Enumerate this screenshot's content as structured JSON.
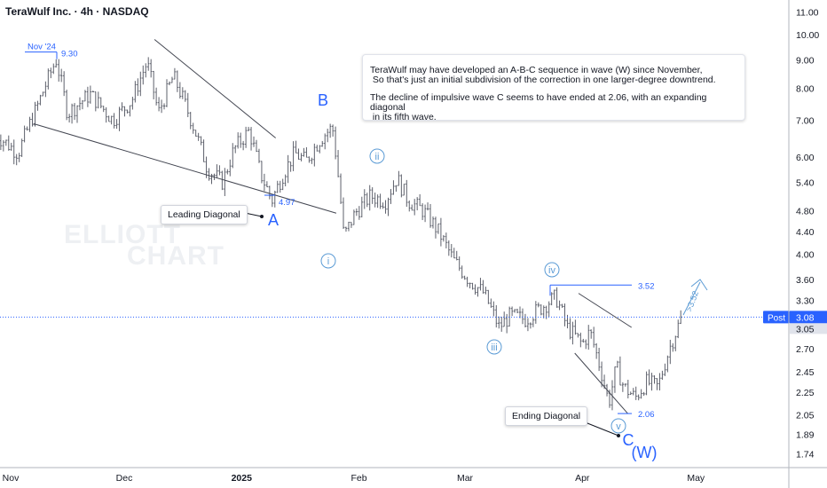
{
  "header": {
    "symbol_title": "TeraWulf Inc. · 4h · NASDAQ"
  },
  "watermark": {
    "line1": "ELLIOTT",
    "line2": "CHART"
  },
  "note": {
    "line1": "TeraWulf may have developed an A-B-C sequence in wave (W) since November,\n So that's just an initial subdivision of the correction in one larger-degree downtrend.",
    "line2": "The decline of impulsive wave C seems to have ended at 2.06, with an expanding diagonal\n in its fifth wave."
  },
  "callouts": {
    "leading": "Leading Diagonal",
    "ending": "Ending Diagonal"
  },
  "colors": {
    "wave": "#2962ff",
    "minor_wave": "#5b9bd5",
    "line": "#2962ff",
    "candle": "#5d606b",
    "grid_text": "#131722",
    "post_badge": "#2962ff"
  },
  "chart_data": {
    "type": "candlestick",
    "title": "TeraWulf Inc. · 4h · NASDAQ",
    "y_scale": "log",
    "y_ticks": [
      "11.00",
      "10.00",
      "9.00",
      "8.00",
      "7.00",
      "6.00",
      "5.40",
      "4.80",
      "4.40",
      "4.00",
      "3.60",
      "3.30",
      "2.70",
      "2.45",
      "2.25",
      "2.05",
      "1.89",
      "1.74"
    ],
    "y_range": [
      1.7,
      11.5
    ],
    "x_ticks": [
      "Nov",
      "Dec",
      "2025",
      "Feb",
      "Mar",
      "Apr",
      "May"
    ],
    "price_labels": {
      "post_label": "Post",
      "post_value": "3.08",
      "last_value": "3.05"
    },
    "levels": [
      {
        "label": "Nov '24",
        "value_text": "9.30",
        "value": 9.3
      },
      {
        "label": "",
        "value_text": "4.97",
        "value": 4.97
      },
      {
        "label": "",
        "value_text": "3.52",
        "value": 3.52
      },
      {
        "label": "",
        "value_text": "2.06",
        "value": 2.06
      }
    ],
    "wave_labels": {
      "major": [
        "A",
        "B",
        "C",
        "(W)"
      ],
      "minor": [
        "i",
        "ii",
        "iii",
        "iv",
        "v"
      ]
    },
    "projection_label": ">3.52",
    "path": [
      [
        "2024-10-28",
        6.6
      ],
      [
        "2024-11-03",
        6.1
      ],
      [
        "2024-11-08",
        7.4
      ],
      [
        "2024-11-13",
        9.0
      ],
      [
        "2024-11-16",
        7.2
      ],
      [
        "2024-11-22",
        7.8
      ],
      [
        "2024-11-28",
        7.0
      ],
      [
        "2024-12-03",
        7.6
      ],
      [
        "2024-12-07",
        8.9
      ],
      [
        "2024-12-10",
        7.2
      ],
      [
        "2024-12-14",
        8.4
      ],
      [
        "2024-12-19",
        6.9
      ],
      [
        "2024-12-23",
        5.7
      ],
      [
        "2024-12-27",
        5.4
      ],
      [
        "2024-12-30",
        6.2
      ],
      [
        "2025-01-03",
        6.7
      ],
      [
        "2025-01-06",
        5.6
      ],
      [
        "2025-01-09",
        5.0
      ],
      [
        "2025-01-12",
        5.6
      ],
      [
        "2025-01-15",
        6.1
      ],
      [
        "2025-01-18",
        5.9
      ],
      [
        "2025-01-22",
        6.5
      ],
      [
        "2025-01-25",
        6.8
      ],
      [
        "2025-01-28",
        4.3
      ],
      [
        "2025-01-31",
        4.75
      ],
      [
        "2025-02-04",
        5.1
      ],
      [
        "2025-02-08",
        5.0
      ],
      [
        "2025-02-11",
        5.5
      ],
      [
        "2025-02-14",
        5.0
      ],
      [
        "2025-02-18",
        4.8
      ],
      [
        "2025-02-22",
        4.4
      ],
      [
        "2025-02-26",
        3.9
      ],
      [
        "2025-03-02",
        3.6
      ],
      [
        "2025-03-06",
        3.4
      ],
      [
        "2025-03-10",
        2.95
      ],
      [
        "2025-03-13",
        3.1
      ],
      [
        "2025-03-17",
        3.05
      ],
      [
        "2025-03-21",
        3.2
      ],
      [
        "2025-03-25",
        3.35
      ],
      [
        "2025-03-28",
        2.95
      ],
      [
        "2025-04-01",
        2.75
      ],
      [
        "2025-04-03",
        2.9
      ],
      [
        "2025-04-06",
        2.45
      ],
      [
        "2025-04-08",
        2.15
      ],
      [
        "2025-04-10",
        2.5
      ],
      [
        "2025-04-12",
        2.3
      ],
      [
        "2025-04-15",
        2.2
      ],
      [
        "2025-04-18",
        2.35
      ],
      [
        "2025-04-21",
        2.3
      ],
      [
        "2025-04-24",
        2.7
      ],
      [
        "2025-04-27",
        3.05
      ]
    ]
  }
}
